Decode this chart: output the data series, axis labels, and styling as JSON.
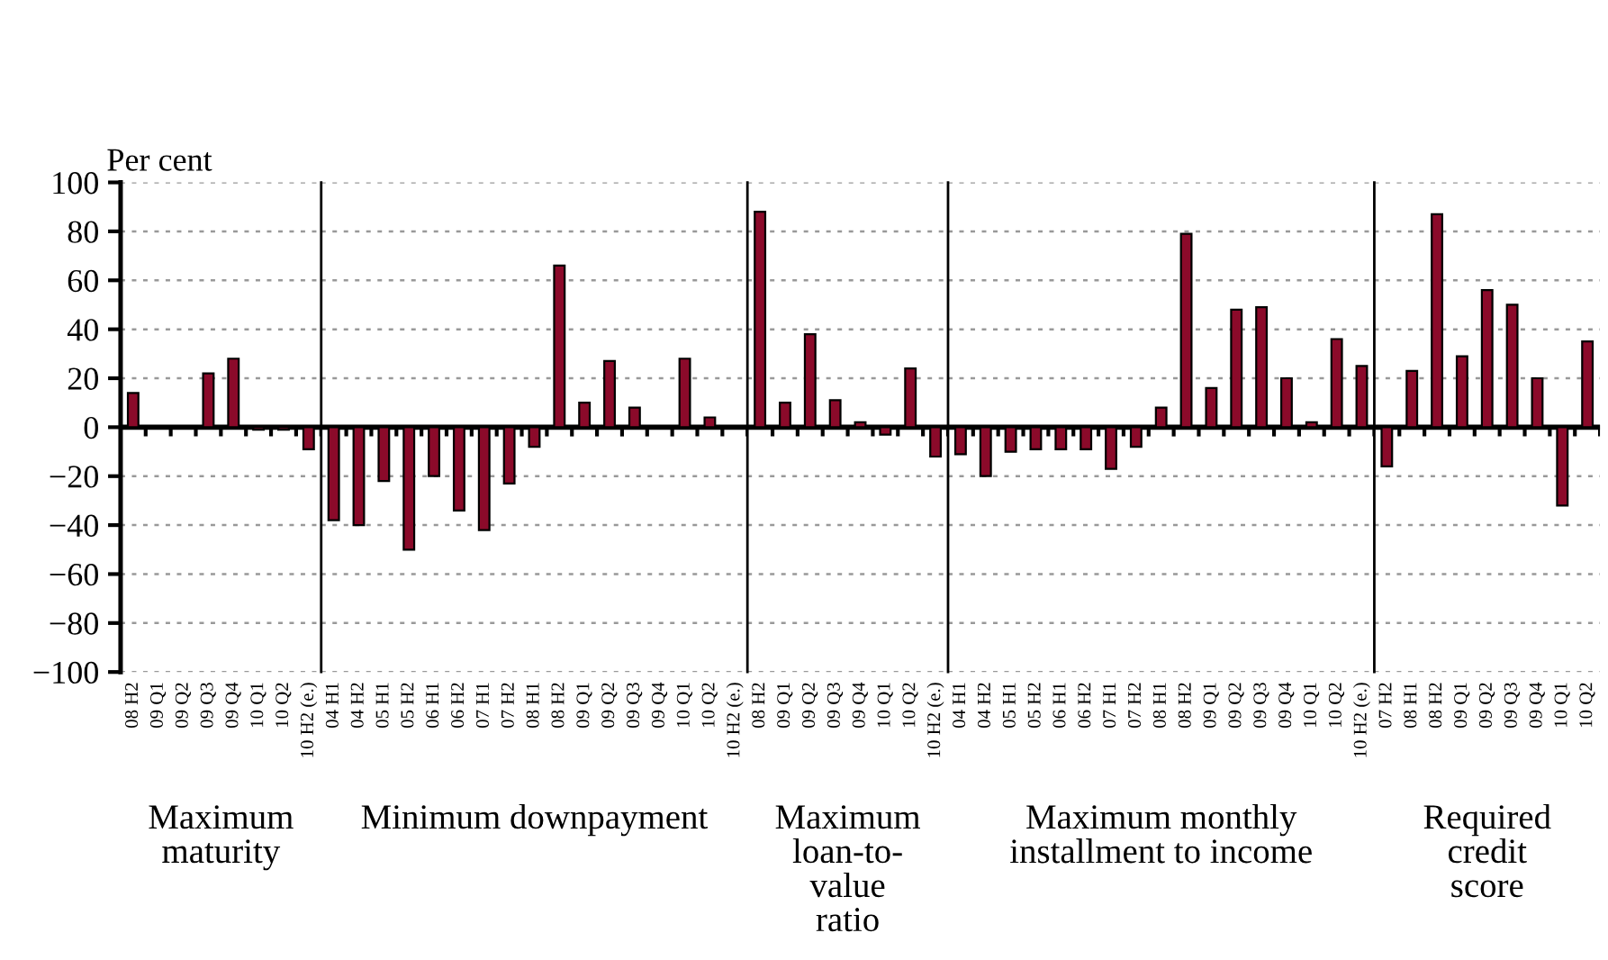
{
  "chart_data": [
    {
      "type": "bar",
      "ylabel": "Per cent",
      "xlabel": "Maximum\nmaturity",
      "categories": [
        "08 H2",
        "09 Q1",
        "09 Q2",
        "09 Q3",
        "09 Q4",
        "10 Q1",
        "10 Q2",
        "10 H2 (e.)"
      ],
      "values": [
        14,
        0,
        0,
        22,
        28,
        -1,
        -1,
        -9
      ],
      "color": "#8b0a2a",
      "ylim": [
        -100,
        100
      ],
      "yticks": [
        -100,
        -80,
        -60,
        -40,
        -20,
        0,
        20,
        40,
        60,
        80,
        100
      ],
      "grid": "y",
      "ref_lines": [
        {
          "axis": "y",
          "value": 0
        }
      ]
    },
    {
      "type": "bar",
      "xlabel": "Minimum downpayment",
      "categories": [
        "04 H1",
        "04 H2",
        "05 H1",
        "05 H2",
        "06 H1",
        "06 H2",
        "07 H1",
        "07 H2",
        "08 H1",
        "08 H2",
        "09 Q1",
        "09 Q2",
        "09 Q3",
        "09 Q4",
        "10 Q1",
        "10 Q2",
        "10 H2 (e.)"
      ],
      "values": [
        -38,
        -40,
        -22,
        -50,
        -20,
        -34,
        -42,
        -23,
        -8,
        66,
        10,
        27,
        8,
        0,
        28,
        4,
        0
      ],
      "color": "#8b0a2a",
      "ylim": [
        -100,
        100
      ],
      "yticks": [
        -100,
        -80,
        -60,
        -40,
        -20,
        0,
        20,
        40,
        60,
        80,
        100
      ],
      "grid": "y",
      "tick_labels": "x",
      "ref_lines": [
        {
          "axis": "y",
          "value": 0
        }
      ]
    },
    {
      "type": "bar",
      "xlabel": "Maximum\nloan-to-\nvalue\nratio",
      "categories": [
        "08 H2",
        "09 Q1",
        "09 Q2",
        "09 Q3",
        "09 Q4",
        "10 Q1",
        "10 Q2",
        "10 H2 (e.)"
      ],
      "values": [
        88,
        10,
        38,
        11,
        2,
        -3,
        24,
        -12
      ],
      "color": "#8b0a2a",
      "ylim": [
        -100,
        100
      ],
      "yticks": [
        -100,
        -80,
        -60,
        -40,
        -20,
        0,
        20,
        40,
        60,
        80,
        100
      ],
      "grid": "y",
      "tick_labels": "x",
      "ref_lines": [
        {
          "axis": "y",
          "value": 0
        }
      ]
    },
    {
      "type": "bar",
      "xlabel": "Maximum monthly\ninstallment to income",
      "categories": [
        "04 H1",
        "04 H2",
        "05 H1",
        "05 H2",
        "06 H1",
        "06 H2",
        "07 H1",
        "07 H2",
        "08 H1",
        "08 H2",
        "09 Q1",
        "09 Q2",
        "09 Q3",
        "09 Q4",
        "10 Q1",
        "10 Q2",
        "10 H2 (e.)"
      ],
      "values": [
        -11,
        -20,
        -10,
        -9,
        -9,
        -9,
        -17,
        -8,
        8,
        79,
        16,
        48,
        49,
        20,
        2,
        36,
        25
      ],
      "color": "#8b0a2a",
      "ylim": [
        -100,
        100
      ],
      "yticks": [
        -100,
        -80,
        -60,
        -40,
        -20,
        0,
        20,
        40,
        60,
        80,
        100
      ],
      "grid": "y",
      "tick_labels": "x",
      "ref_lines": [
        {
          "axis": "y",
          "value": 0
        }
      ]
    },
    {
      "type": "bar",
      "xlabel": "Required\ncredit\nscore",
      "categories": [
        "07 H2",
        "08 H1",
        "08 H2",
        "09 Q1",
        "09 Q2",
        "09 Q3",
        "09 Q4",
        "10 Q1",
        "10 Q2"
      ],
      "values": [
        -16,
        23,
        87,
        29,
        56,
        50,
        20,
        -32,
        35
      ],
      "color": "#8b0a2a",
      "ylim": [
        -100,
        100
      ],
      "yticks": [
        -100,
        -80,
        -60,
        -40,
        -20,
        0,
        20,
        40,
        60,
        80,
        100
      ],
      "grid": "y",
      "tick_labels": "x",
      "ref_lines": [
        {
          "axis": "y",
          "value": 0
        }
      ]
    }
  ]
}
